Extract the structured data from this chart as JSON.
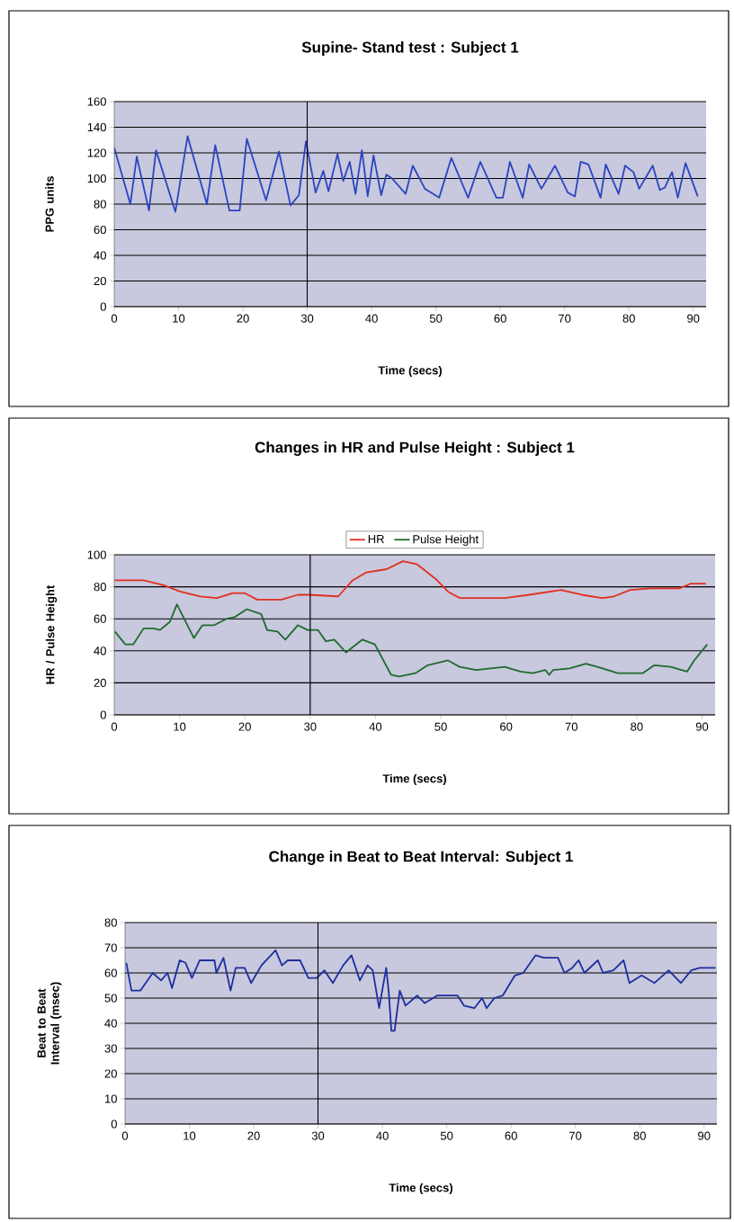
{
  "chart_data": [
    {
      "type": "line",
      "title": "Supine- Stand test : Subject 1",
      "xlabel": "Time (secs)",
      "ylabel": "PPG units",
      "xlim": [
        0,
        92
      ],
      "ylim": [
        0,
        160
      ],
      "xticks": [
        0,
        10,
        20,
        30,
        40,
        50,
        60,
        70,
        80,
        90
      ],
      "yticks": [
        0,
        20,
        40,
        60,
        80,
        100,
        120,
        140,
        160
      ],
      "grid": "y",
      "ref_lines": [
        {
          "axis": "x",
          "value": 30,
          "color": "#000000"
        }
      ],
      "series": [
        {
          "color": "#2b44c0",
          "x": [
            0,
            2.5,
            3.5,
            5.4,
            6.5,
            9.5,
            11.4,
            14.4,
            15.7,
            17.9,
            19.5,
            20.6,
            23.6,
            25.6,
            27.4,
            28.7,
            29.8,
            31.3,
            32.5,
            33.3,
            34.7,
            35.6,
            36.6,
            37.5,
            38.5,
            39.4,
            40.3,
            41.5,
            42.3,
            43.2,
            45.3,
            46.4,
            48.3,
            50.5,
            52.4,
            55.0,
            56.9,
            59.4,
            60.4,
            61.5,
            63.5,
            64.5,
            66.4,
            68.5,
            70.5,
            71.6,
            72.5,
            73.7,
            75.6,
            76.4,
            78.4,
            79.4,
            80.7,
            81.6,
            83.7,
            84.8,
            85.6,
            86.7,
            87.6,
            88.8,
            90.7
          ],
          "values": [
            124,
            80,
            117,
            75,
            122,
            74,
            133,
            80,
            126,
            75,
            75,
            131,
            83,
            121,
            79,
            87,
            129,
            89,
            106,
            90,
            119,
            98,
            113,
            88,
            122,
            86,
            118,
            87,
            103,
            100,
            88,
            110,
            92,
            85,
            116,
            85,
            113,
            85,
            85,
            113,
            85,
            111,
            92,
            110,
            89,
            86,
            113,
            111,
            85,
            111,
            88,
            110,
            105,
            92,
            110,
            91,
            93,
            105,
            85,
            112,
            86
          ]
        }
      ]
    },
    {
      "type": "line",
      "title": "Changes in HR and Pulse Height : Subject 1",
      "xlabel": "Time (secs)",
      "ylabel": "HR / Pulse Height",
      "xlim": [
        0,
        92
      ],
      "ylim": [
        0,
        100
      ],
      "xticks": [
        0,
        10,
        20,
        30,
        40,
        50,
        60,
        70,
        80,
        90
      ],
      "yticks": [
        0,
        20,
        40,
        60,
        80,
        100
      ],
      "grid": "y",
      "legend": "top",
      "ref_lines": [
        {
          "axis": "x",
          "value": 30,
          "color": "#000000"
        }
      ],
      "series": [
        {
          "name": "HR",
          "color": "#e0301e",
          "x": [
            0.1,
            4.5,
            7.6,
            10.1,
            13.2,
            15.7,
            18.1,
            20.0,
            21.9,
            25.6,
            28.1,
            29.9,
            34.3,
            36.5,
            38.6,
            41.7,
            44.2,
            46.4,
            49.2,
            51.1,
            52.9,
            59.8,
            63.5,
            68.4,
            71.6,
            74.7,
            76.5,
            79.0,
            82.1,
            86.5,
            88.3,
            90.6
          ],
          "values": [
            84,
            84,
            81,
            77,
            74,
            73,
            76,
            76,
            72,
            72,
            75,
            75,
            74,
            84,
            89,
            91,
            96,
            94,
            85,
            77,
            73,
            73,
            75,
            78,
            75,
            73,
            74,
            78,
            79,
            79,
            82,
            82
          ]
        },
        {
          "name": "Pulse Height",
          "color": "#1e6b2e",
          "x": [
            0.1,
            1.7,
            2.9,
            4.5,
            6.0,
            7.0,
            8.5,
            9.6,
            12.2,
            13.5,
            15.3,
            17.2,
            18.4,
            20.3,
            22.5,
            23.4,
            25.0,
            26.2,
            28.1,
            29.6,
            31.2,
            32.4,
            33.7,
            35.5,
            38.0,
            39.9,
            42.4,
            43.6,
            46.1,
            48.0,
            51.1,
            52.9,
            55.4,
            59.8,
            62.2,
            64.1,
            66.0,
            66.6,
            67.2,
            69.7,
            72.2,
            74.0,
            77.1,
            80.9,
            82.7,
            85.2,
            87.7,
            88.8,
            90.8
          ],
          "values": [
            52,
            44,
            44,
            54,
            54,
            53,
            58,
            69,
            48,
            56,
            56,
            60,
            61,
            66,
            63,
            53,
            52,
            47,
            56,
            53,
            53,
            46,
            47,
            39,
            47,
            44,
            25,
            24,
            26,
            31,
            34,
            30,
            28,
            30,
            27,
            26,
            28,
            25,
            28,
            29,
            32,
            30,
            26,
            26,
            31,
            30,
            27,
            34,
            44
          ]
        }
      ]
    },
    {
      "type": "line",
      "title": "Change in Beat to Beat Interval: Subject 1",
      "xlabel": "Time (secs)",
      "ylabel": "Beat to Beat Interval (msec)",
      "xlim": [
        0,
        92
      ],
      "ylim": [
        0,
        80
      ],
      "xticks": [
        0,
        10,
        20,
        30,
        40,
        50,
        60,
        70,
        80,
        90
      ],
      "yticks": [
        0,
        10,
        20,
        30,
        40,
        50,
        60,
        70,
        80
      ],
      "grid": "y",
      "ref_lines": [
        {
          "axis": "x",
          "value": 30,
          "color": "#000000"
        }
      ],
      "series": [
        {
          "color": "#1c2f9e",
          "x": [
            0.2,
            1.0,
            2.4,
            4.3,
            5.6,
            6.6,
            7.3,
            8.5,
            9.4,
            10.4,
            11.6,
            12.9,
            13.9,
            14.2,
            15.3,
            16.4,
            17.2,
            18.6,
            19.6,
            21.2,
            23.4,
            24.4,
            25.3,
            27.2,
            28.5,
            29.8,
            31.0,
            32.3,
            33.9,
            35.2,
            36.5,
            37.7,
            38.5,
            39.5,
            40.6,
            41.0,
            41.4,
            41.9,
            42.7,
            43.6,
            45.4,
            46.6,
            48.5,
            51.7,
            52.7,
            54.3,
            55.5,
            56.2,
            57.4,
            58.7,
            60.6,
            61.9,
            63.8,
            65.1,
            67.3,
            68.3,
            69.5,
            70.5,
            71.4,
            73.5,
            74.3,
            75.9,
            77.5,
            78.4,
            80.3,
            82.3,
            84.5,
            86.4,
            88.0,
            89.3,
            91.8
          ],
          "values": [
            64,
            53,
            53,
            60,
            57,
            60,
            54,
            65,
            64,
            58,
            65,
            65,
            65,
            60,
            66,
            53,
            62,
            62,
            56,
            63,
            69,
            63,
            65,
            65,
            58,
            58,
            61,
            56,
            63,
            67,
            57,
            63,
            61,
            46,
            62,
            52,
            37,
            37,
            53,
            47,
            51,
            48,
            51,
            51,
            47,
            46,
            50,
            46,
            50,
            51,
            59,
            60,
            67,
            66,
            66,
            60,
            62,
            65,
            60,
            65,
            60,
            61,
            65,
            56,
            59,
            56,
            61,
            56,
            61,
            62,
            62
          ]
        }
      ]
    }
  ]
}
